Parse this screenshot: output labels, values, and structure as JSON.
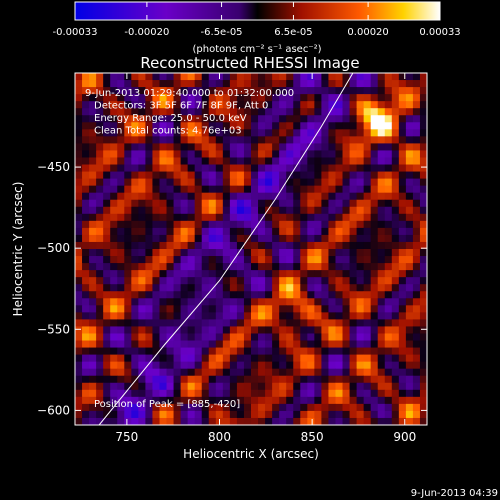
{
  "chart_data": {
    "type": "heatmap",
    "title": "Reconstructed RHESSI Image",
    "xlabel": "Heliocentric X (arcsec)",
    "ylabel": "Heliocentric Y (arcsec)",
    "xlim": [
      722,
      912
    ],
    "ylim": [
      -609,
      -392
    ],
    "x_ticks": [
      750,
      800,
      850,
      900
    ],
    "y_ticks": [
      -450,
      -500,
      -550,
      -600
    ],
    "annotations": [
      "9-Jun-2013 01:29:40.000 to 01:32:00.000",
      "Detectors: 3F 5F 6F 7F 8F 9F, Att 0",
      "Energy Range: 25.0 - 50.0 keV",
      "Clean    Total counts: 4.76e+03"
    ],
    "peak_label": "Position of Peak = [885,-420]",
    "peak": [
      885,
      -420
    ],
    "limb_curve_x": [
      735,
      770,
      800,
      830,
      855,
      872
    ],
    "limb_curve_y": [
      -609,
      -560,
      -520,
      -470,
      -425,
      -392
    ],
    "colorbar": {
      "min": -0.00033,
      "max": 0.00033,
      "tick_labels": [
        "-0.00033",
        "-0.00020",
        "-6.5e-05",
        "6.5e-05",
        "0.00020",
        "0.00033"
      ],
      "tick_values": [
        -0.00033,
        -0.0002,
        -6.5e-05,
        6.5e-05,
        0.0002,
        0.00033
      ],
      "unit_label": "(photons cm⁻² s⁻¹ asec⁻²)"
    },
    "colors": {
      "scale": [
        "#0000e6",
        "#6a00c8",
        "#3a0070",
        "#000000",
        "#a01000",
        "#ff5a00",
        "#ffd200",
        "#ffffff"
      ]
    },
    "grid": false
  },
  "timestamp": "9-Jun-2013 04:39"
}
